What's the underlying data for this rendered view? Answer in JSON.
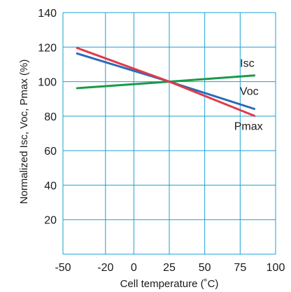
{
  "chart_data": {
    "type": "line",
    "xlabel": "Cell temperature (˚C)",
    "ylabel": "Normalized Isc, Voc, Pmax (%)",
    "xlim": [
      -50,
      100
    ],
    "ylim": [
      0,
      140
    ],
    "xticks": [
      -50,
      -20,
      0,
      25,
      50,
      75,
      100
    ],
    "xtick_labels": [
      "-50",
      "-20",
      "0",
      "25",
      "50",
      "75",
      "100"
    ],
    "yticks": [
      20,
      40,
      60,
      80,
      100,
      120,
      140
    ],
    "ytick_labels": [
      "20",
      "40",
      "60",
      "80",
      "100",
      "120",
      "140"
    ],
    "grid": true,
    "series": [
      {
        "name": "Isc",
        "color": "#1a9a4a",
        "x": [
          -40,
          25,
          85
        ],
        "y": [
          96.2,
          100,
          103.6
        ]
      },
      {
        "name": "Voc",
        "color": "#2a6bb5",
        "x": [
          -40,
          25,
          85
        ],
        "y": [
          116.3,
          100,
          84.2
        ]
      },
      {
        "name": "Pmax",
        "color": "#e03a4a",
        "x": [
          -40,
          25,
          85
        ],
        "y": [
          119.5,
          100,
          80.2
        ]
      }
    ],
    "gridline_color": "#1aa0d8"
  }
}
